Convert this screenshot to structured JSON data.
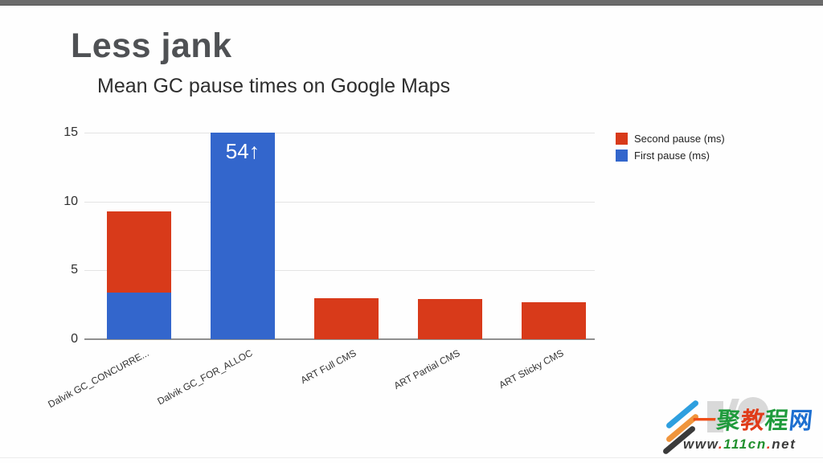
{
  "page": {
    "title": "Less jank",
    "subtitle": "Mean GC pause times on Google Maps"
  },
  "chart_data": {
    "type": "bar",
    "stacked": true,
    "title": "Mean GC pause times on Google Maps",
    "categories": [
      "Dalvik GC_CONCURRE...",
      "Dalvik GC_FOR_ALLOC",
      "ART Full CMS",
      "ART Partial CMS",
      "ART Sticky CMS"
    ],
    "series": [
      {
        "name": "First pause (ms)",
        "color": "#3366cc",
        "values": [
          3.4,
          54,
          0,
          0,
          0
        ]
      },
      {
        "name": "Second pause (ms)",
        "color": "#d83a1a",
        "values": [
          5.9,
          0,
          3.0,
          2.9,
          2.7
        ]
      }
    ],
    "ylim": [
      0,
      15
    ],
    "yticks": [
      0,
      5,
      10,
      15
    ],
    "grid": true,
    "legend_position": "right",
    "overflow_label": {
      "category_index": 1,
      "text": "54",
      "arrow": "↑"
    }
  },
  "legend": {
    "items": [
      {
        "label": "Second pause (ms)",
        "color": "#d83a1a"
      },
      {
        "label": "First pause (ms)",
        "color": "#3366cc"
      }
    ]
  },
  "watermark": {
    "site_name_chars": [
      {
        "char": "一",
        "color": "#ef4e18"
      },
      {
        "char": "聚",
        "color": "#1f9b3c"
      },
      {
        "char": "教",
        "color": "#e03c1a"
      },
      {
        "char": "程",
        "color": "#1f9b3c"
      },
      {
        "char": "网",
        "color": "#1d6fd0"
      }
    ],
    "url_parts": [
      {
        "text": "www",
        "color": "#3c3c3c"
      },
      {
        "text": ".",
        "color": "#e8341c"
      },
      {
        "text": "111cn",
        "color": "#22912f"
      },
      {
        "text": ".",
        "color": "#e8341c"
      },
      {
        "text": "net",
        "color": "#3c3c3c"
      }
    ]
  }
}
